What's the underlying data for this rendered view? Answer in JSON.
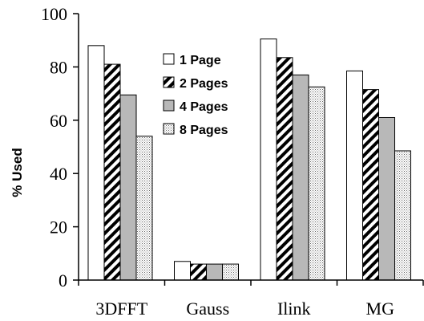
{
  "chart_data": {
    "type": "bar",
    "title": "",
    "xlabel": "",
    "ylabel": "% Used",
    "ylim": [
      0,
      100
    ],
    "yticks": [
      0,
      20,
      40,
      60,
      80,
      100
    ],
    "grid": false,
    "legend_position": "top-center",
    "categories": [
      "3DFFT",
      "Gauss",
      "Ilink",
      "MG"
    ],
    "series": [
      {
        "name": "1 Page",
        "fill": "white",
        "values": [
          88,
          7,
          90.5,
          78.5
        ]
      },
      {
        "name": "2 Pages",
        "fill": "diagonal-stripes",
        "values": [
          81,
          6,
          83.5,
          71.5
        ]
      },
      {
        "name": "4 Pages",
        "fill": "gray",
        "values": [
          69.5,
          6,
          77,
          61
        ]
      },
      {
        "name": "8 Pages",
        "fill": "dotted",
        "values": [
          54,
          6,
          72.5,
          48.5
        ]
      }
    ],
    "colors": {
      "axis": "#000000",
      "gray_fill": "#b8b8b8",
      "background": "#ffffff"
    }
  }
}
